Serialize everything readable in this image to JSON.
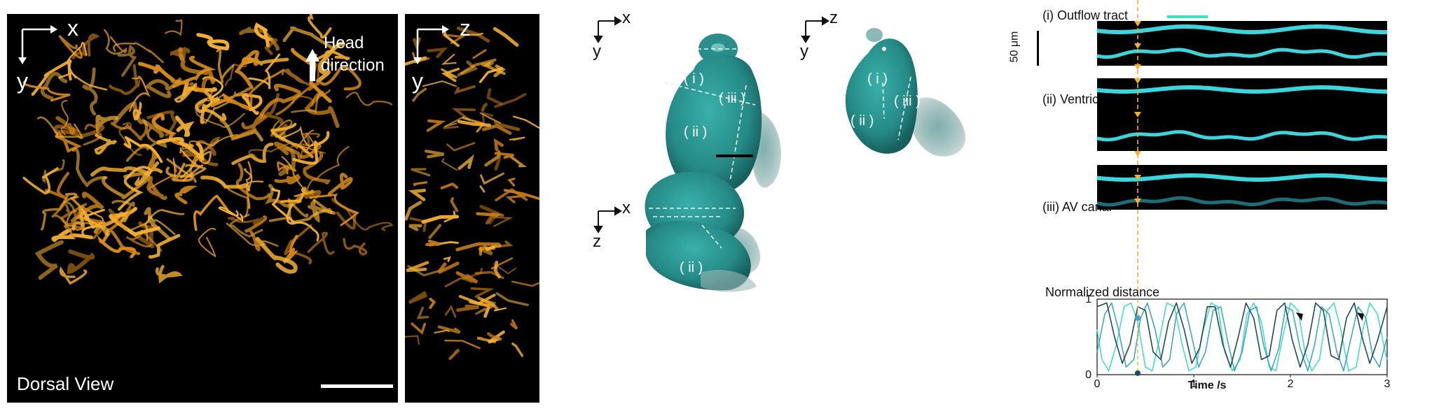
{
  "panelA": {
    "x_axis": "x",
    "y_axis": "y",
    "head_label_1": "Head",
    "head_label_2": "direction",
    "view_label": "Dorsal View",
    "side_x": "z",
    "side_y": "y",
    "colors": {
      "background": "#000000",
      "vessel": "#f0a020"
    }
  },
  "panelB": {
    "top_left_axes": {
      "h": "x",
      "v": "y"
    },
    "top_right_axes": {
      "h": "z",
      "v": "y"
    },
    "bottom_axes": {
      "h": "x",
      "v": "z"
    },
    "labels_xy": [
      "( i )",
      "( iii )",
      "( ii )"
    ],
    "labels_zy": [
      "( i )",
      "( ii )",
      "( iii )"
    ],
    "labels_xz": [
      "( ii )",
      "( i )",
      "( iii )"
    ],
    "colors": {
      "heart": "#2a8f8c"
    }
  },
  "panelC": {
    "scale_label": "50 μm",
    "kymo_titles": [
      "(i) Outflow tract",
      "(ii) Ventricle",
      "(iii) AV canal"
    ],
    "colors": {
      "outflow": "#40e0c0",
      "ventricle": "#3fa6c8",
      "avcanal": "#1f4a5c",
      "marker": "#f2b230"
    },
    "chart_data": {
      "type": "line",
      "title": "Normalized distance",
      "xlabel": "Time /s",
      "ylabel": "",
      "xlim": [
        0,
        3
      ],
      "ylim": [
        0,
        1
      ],
      "x_ticks": [
        "0",
        "1",
        "2",
        "3"
      ],
      "y_ticks": [
        "0",
        "1"
      ],
      "series": [
        {
          "color": "#40e0c0",
          "x": [
            0,
            0.05,
            0.12,
            0.2,
            0.28,
            0.35,
            0.42,
            0.5,
            0.57,
            0.65,
            0.72,
            0.8,
            0.88,
            0.95,
            1.02,
            1.1,
            1.18,
            1.25,
            1.32,
            1.4,
            1.48,
            1.55,
            1.62,
            1.7,
            1.78,
            1.85,
            1.92,
            2.0,
            2.08,
            2.15,
            2.22,
            2.3,
            2.38,
            2.45,
            2.52,
            2.6,
            2.68,
            2.75,
            2.82,
            2.9,
            2.98,
            3.0
          ],
          "y": [
            0.6,
            0.2,
            0.05,
            0.4,
            0.9,
            0.95,
            0.7,
            0.1,
            0.05,
            0.5,
            0.95,
            0.9,
            0.4,
            0.05,
            0.1,
            0.6,
            0.95,
            0.9,
            0.3,
            0.05,
            0.2,
            0.8,
            0.95,
            0.7,
            0.1,
            0.05,
            0.5,
            0.95,
            0.85,
            0.3,
            0.05,
            0.2,
            0.85,
            0.95,
            0.6,
            0.05,
            0.1,
            0.6,
            0.95,
            0.8,
            0.3,
            0.2
          ]
        },
        {
          "color": "#3fa6c8",
          "x": [
            0,
            0.08,
            0.15,
            0.22,
            0.3,
            0.38,
            0.45,
            0.52,
            0.6,
            0.68,
            0.75,
            0.82,
            0.9,
            0.98,
            1.05,
            1.12,
            1.2,
            1.28,
            1.35,
            1.42,
            1.5,
            1.58,
            1.65,
            1.72,
            1.8,
            1.88,
            1.95,
            2.02,
            2.1,
            2.18,
            2.25,
            2.32,
            2.4,
            2.48,
            2.55,
            2.62,
            2.7,
            2.78,
            2.85,
            2.92,
            3.0
          ],
          "y": [
            0.3,
            0.8,
            0.95,
            0.6,
            0.1,
            0.2,
            0.75,
            0.95,
            0.6,
            0.1,
            0.2,
            0.8,
            0.95,
            0.5,
            0.1,
            0.3,
            0.85,
            0.9,
            0.45,
            0.05,
            0.3,
            0.85,
            0.9,
            0.4,
            0.05,
            0.35,
            0.9,
            0.85,
            0.35,
            0.05,
            0.4,
            0.9,
            0.8,
            0.3,
            0.05,
            0.45,
            0.9,
            0.75,
            0.25,
            0.1,
            0.5
          ]
        },
        {
          "color": "#1f4a5c",
          "x": [
            0,
            0.1,
            0.18,
            0.26,
            0.34,
            0.42,
            0.5,
            0.58,
            0.66,
            0.74,
            0.82,
            0.9,
            0.98,
            1.06,
            1.14,
            1.22,
            1.3,
            1.38,
            1.46,
            1.54,
            1.62,
            1.7,
            1.78,
            1.86,
            1.94,
            2.02,
            2.1,
            2.18,
            2.26,
            2.34,
            2.42,
            2.5,
            2.58,
            2.66,
            2.74,
            2.82,
            2.9,
            3.0
          ],
          "y": [
            0.9,
            0.95,
            0.5,
            0.15,
            0.4,
            0.9,
            0.85,
            0.3,
            0.2,
            0.7,
            0.95,
            0.6,
            0.15,
            0.35,
            0.9,
            0.9,
            0.4,
            0.1,
            0.5,
            0.95,
            0.75,
            0.2,
            0.25,
            0.85,
            0.95,
            0.45,
            0.1,
            0.4,
            0.95,
            0.85,
            0.25,
            0.2,
            0.75,
            0.95,
            0.5,
            0.15,
            0.45,
            0.9
          ]
        }
      ],
      "marker_time": 0.42
    }
  }
}
